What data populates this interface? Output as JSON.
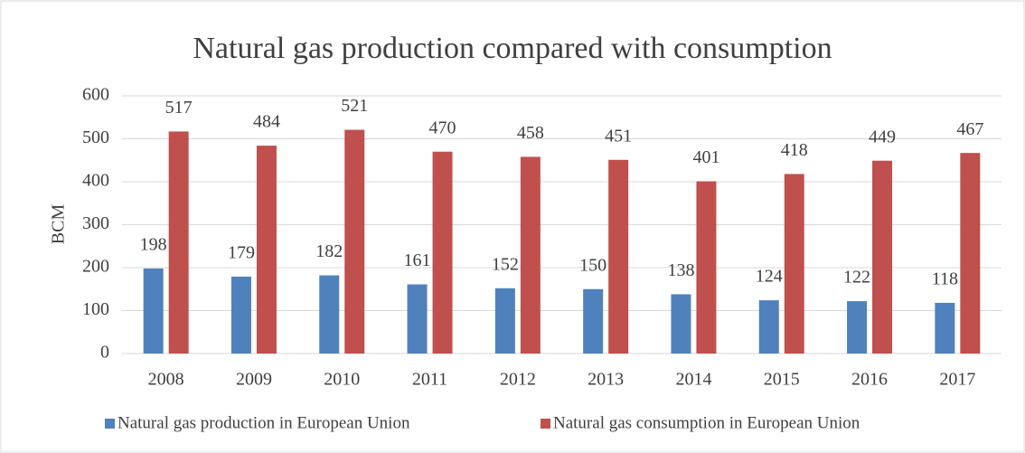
{
  "chart_data": {
    "type": "bar",
    "title": "Natural gas production compared with consumption",
    "ylabel": "BCM",
    "categories": [
      "2008",
      "2009",
      "2010",
      "2011",
      "2012",
      "2013",
      "2014",
      "2015",
      "2016",
      "2017"
    ],
    "series": [
      {
        "name": "Natural gas production in European Union",
        "color": "#4f81bd",
        "values": [
          198,
          179,
          182,
          161,
          152,
          150,
          138,
          124,
          122,
          118
        ]
      },
      {
        "name": "Natural gas consumption in European Union",
        "color": "#c0504d",
        "values": [
          517,
          484,
          521,
          470,
          458,
          451,
          401,
          418,
          449,
          467
        ]
      }
    ],
    "ylim": [
      0,
      600
    ],
    "yticks": [
      0,
      100,
      200,
      300,
      400,
      500,
      600
    ],
    "grid": true,
    "legend": "bottom"
  }
}
